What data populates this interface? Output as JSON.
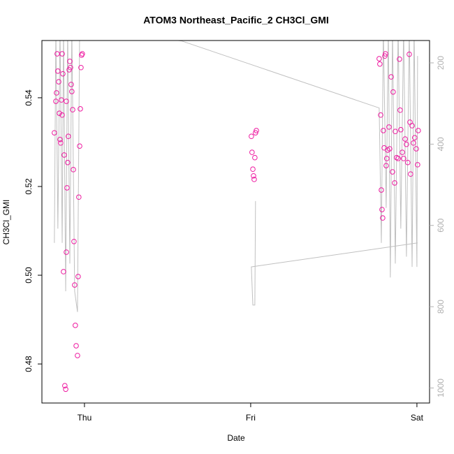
{
  "chart_data": {
    "type": "scatter",
    "title": "ATOM3 Northeast_Pacific_2 CH3Cl_GMI",
    "xlabel": "Date",
    "ylabel": "CH3Cl_GMI",
    "xlim": [
      -0.256,
      2.076
    ],
    "xticks": [
      {
        "value": 0,
        "label": "Thu"
      },
      {
        "value": 1,
        "label": "Fri"
      },
      {
        "value": 2,
        "label": "Sat"
      }
    ],
    "ylim": [
      0.4712,
      0.5529
    ],
    "yticks": [
      0.48,
      {
        "value": 0.5,
        "label": "0.50"
      },
      0.52,
      0.54
    ],
    "y2lim": [
      1037,
      145
    ],
    "y2ticks": [
      200,
      400,
      600,
      800,
      1000
    ],
    "series": [
      {
        "type": "scatter",
        "color": "#ee1aa0",
        "x": [
          -0.181,
          -0.172,
          -0.168,
          -0.164,
          -0.16,
          -0.155,
          -0.151,
          -0.147,
          -0.143,
          -0.139,
          -0.134,
          -0.13,
          -0.126,
          -0.122,
          -0.118,
          -0.113,
          -0.109,
          -0.105,
          -0.101,
          -0.097,
          -0.092,
          -0.088,
          -0.084,
          -0.08,
          -0.076,
          -0.071,
          -0.067,
          -0.063,
          -0.059,
          -0.055,
          -0.05,
          -0.042,
          -0.038,
          -0.034,
          -0.029,
          -0.025,
          -0.021,
          -0.017,
          -0.013,
          -0.134,
          -0.109,
          1.004,
          1.008,
          1.013,
          1.017,
          1.021,
          1.025,
          1.029,
          1.034,
          1.773,
          1.777,
          1.782,
          1.786,
          1.79,
          1.794,
          1.798,
          1.803,
          1.807,
          1.811,
          1.815,
          1.819,
          1.824,
          1.832,
          1.836,
          1.845,
          1.853,
          1.857,
          1.866,
          1.87,
          1.878,
          1.887,
          1.895,
          1.899,
          1.903,
          1.912,
          1.92,
          1.929,
          1.937,
          1.945,
          1.954,
          1.958,
          1.962,
          1.971,
          1.979,
          1.987,
          1.996,
          2.004,
          2.008
        ],
        "values": [
          0.5321,
          0.5392,
          0.5411,
          0.5499,
          0.546,
          0.5436,
          0.5365,
          0.5306,
          0.5298,
          0.5395,
          0.5499,
          0.5454,
          0.5008,
          0.5271,
          0.4751,
          0.4743,
          0.5052,
          0.5197,
          0.5254,
          0.5313,
          0.5463,
          0.5482,
          0.5468,
          0.543,
          0.5414,
          0.5373,
          0.5238,
          0.5076,
          0.4978,
          0.4887,
          0.4841,
          0.4819,
          0.4997,
          0.5176,
          0.5291,
          0.5375,
          0.5468,
          0.5496,
          0.5499,
          0.5361,
          0.5392,
          0.5313,
          0.5277,
          0.5239,
          0.5224,
          0.5216,
          0.5265,
          0.5321,
          0.5326,
          0.5488,
          0.5476,
          0.5361,
          0.5192,
          0.5148,
          0.5129,
          0.5326,
          0.5287,
          0.5494,
          0.5499,
          0.5247,
          0.5263,
          0.5282,
          0.5334,
          0.5285,
          0.5447,
          0.5233,
          0.5413,
          0.5208,
          0.5324,
          0.5265,
          0.5263,
          0.5487,
          0.5372,
          0.5328,
          0.5277,
          0.5263,
          0.5307,
          0.5295,
          0.5254,
          0.5498,
          0.5345,
          0.5228,
          0.5337,
          0.5298,
          0.531,
          0.5285,
          0.5249,
          0.5326
        ]
      },
      {
        "type": "line",
        "axis": "y2",
        "color": "#c0c0c0",
        "x": [
          -0.181,
          -0.172,
          -0.16,
          -0.147,
          -0.134,
          -0.126,
          -0.113,
          -0.101,
          -0.088,
          -0.076,
          -0.059,
          -0.042,
          -0.029,
          0.584,
          1.773,
          1.786,
          1.798,
          1.815,
          1.828,
          1.84,
          1.853,
          1.87,
          1.887,
          1.903,
          1.92,
          1.937,
          1.954,
          1.971,
          1.983,
          2.0,
          2.004,
          null,
          1.029,
          1.025,
          1.013,
          1.004,
          2.004
        ],
        "values": [
          643,
          115,
          608,
          115,
          643,
          115,
          762,
          115,
          694,
          115,
          762,
          813,
          115,
          146,
          311,
          643,
          115,
          557,
          115,
          728,
          115,
          694,
          115,
          608,
          115,
          677,
          115,
          702,
          115,
          702,
          183,
          null,
          540,
          796,
          796,
          702,
          643
        ]
      }
    ]
  }
}
